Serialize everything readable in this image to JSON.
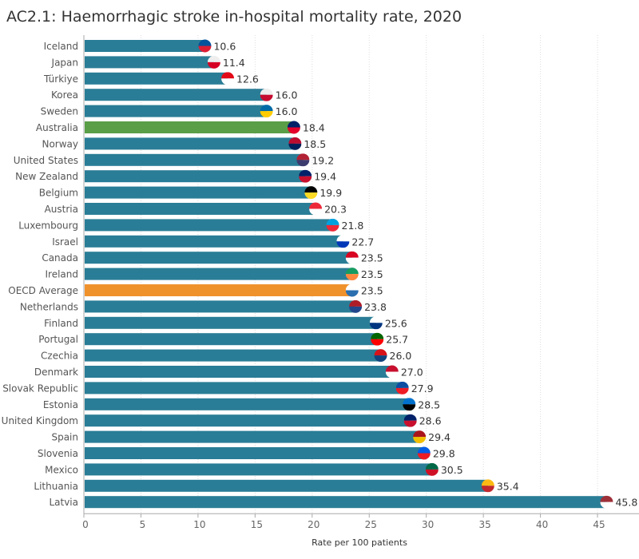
{
  "chart_data": {
    "type": "bar",
    "orientation": "horizontal",
    "title": "AC2.1: Haemorrhagic stroke in-hospital mortality rate, 2020",
    "xlabel": "Rate per 100 patients",
    "ylabel": "",
    "xlim": [
      0,
      48
    ],
    "xticks": [
      0,
      5,
      10,
      15,
      20,
      25,
      30,
      35,
      40,
      45
    ],
    "grid": "vertical dotted",
    "categories": [
      "Iceland",
      "Japan",
      "Türkiye",
      "Korea",
      "Sweden",
      "Australia",
      "Norway",
      "United States",
      "New Zealand",
      "Belgium",
      "Austria",
      "Luxembourg",
      "Israel",
      "Canada",
      "Ireland",
      "OECD Average",
      "Netherlands",
      "Finland",
      "Portugal",
      "Czechia",
      "Denmark",
      "Slovak Republic",
      "Estonia",
      "United Kingdom",
      "Spain",
      "Slovenia",
      "Mexico",
      "Lithuania",
      "Latvia"
    ],
    "values": [
      10.6,
      11.4,
      12.6,
      16.0,
      16.0,
      18.4,
      18.5,
      19.2,
      19.4,
      19.9,
      20.3,
      21.8,
      22.7,
      23.5,
      23.5,
      23.5,
      23.8,
      25.6,
      25.7,
      26.0,
      27.0,
      27.9,
      28.5,
      28.6,
      29.4,
      29.8,
      30.5,
      35.4,
      45.8
    ],
    "data_labels": [
      "10.6",
      "11.4",
      "12.6",
      "16.0",
      "16.0",
      "18.4",
      "18.5",
      "19.2",
      "19.4",
      "19.9",
      "20.3",
      "21.8",
      "22.7",
      "23.5",
      "23.5",
      "23.5",
      "23.8",
      "25.6",
      "25.7",
      "26.0",
      "27.0",
      "27.9",
      "28.5",
      "28.6",
      "29.4",
      "29.8",
      "30.5",
      "35.4",
      "45.8"
    ],
    "colors": {
      "default": "#2a7d96",
      "Australia": "#5a9e47",
      "OECD Average": "#f0922c"
    },
    "flag_markers": true
  }
}
